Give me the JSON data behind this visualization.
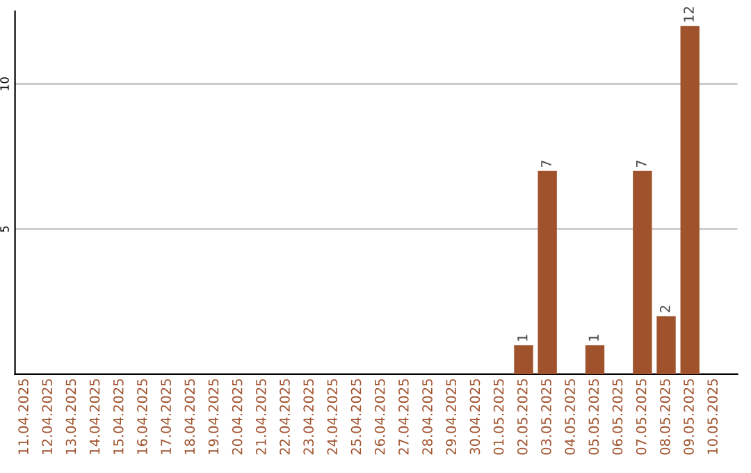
{
  "chart_data": {
    "type": "bar",
    "categories": [
      "11.04.2025",
      "12.04.2025",
      "13.04.2025",
      "14.04.2025",
      "15.04.2025",
      "16.04.2025",
      "17.04.2025",
      "18.04.2025",
      "19.04.2025",
      "20.04.2025",
      "21.04.2025",
      "22.04.2025",
      "23.04.2025",
      "24.04.2025",
      "25.04.2025",
      "26.04.2025",
      "27.04.2025",
      "28.04.2025",
      "29.04.2025",
      "30.04.2025",
      "01.05.2025",
      "02.05.2025",
      "03.05.2025",
      "04.05.2025",
      "05.05.2025",
      "06.05.2025",
      "07.05.2025",
      "08.05.2025",
      "09.05.2025",
      "10.05.2025"
    ],
    "values": [
      0,
      0,
      0,
      0,
      0,
      0,
      0,
      0,
      0,
      0,
      0,
      0,
      0,
      0,
      0,
      0,
      0,
      0,
      0,
      0,
      0,
      1,
      7,
      0,
      1,
      0,
      7,
      2,
      12,
      0
    ],
    "value_labels": [
      null,
      null,
      null,
      null,
      null,
      null,
      null,
      null,
      null,
      null,
      null,
      null,
      null,
      null,
      null,
      null,
      null,
      null,
      null,
      null,
      null,
      "1",
      "7",
      null,
      "1",
      null,
      "7",
      "2",
      "12",
      null
    ],
    "color": "#a0522d",
    "ylim": [
      0,
      12.5
    ],
    "yticks": [
      5,
      10
    ],
    "grid": "y",
    "legend": false
  }
}
